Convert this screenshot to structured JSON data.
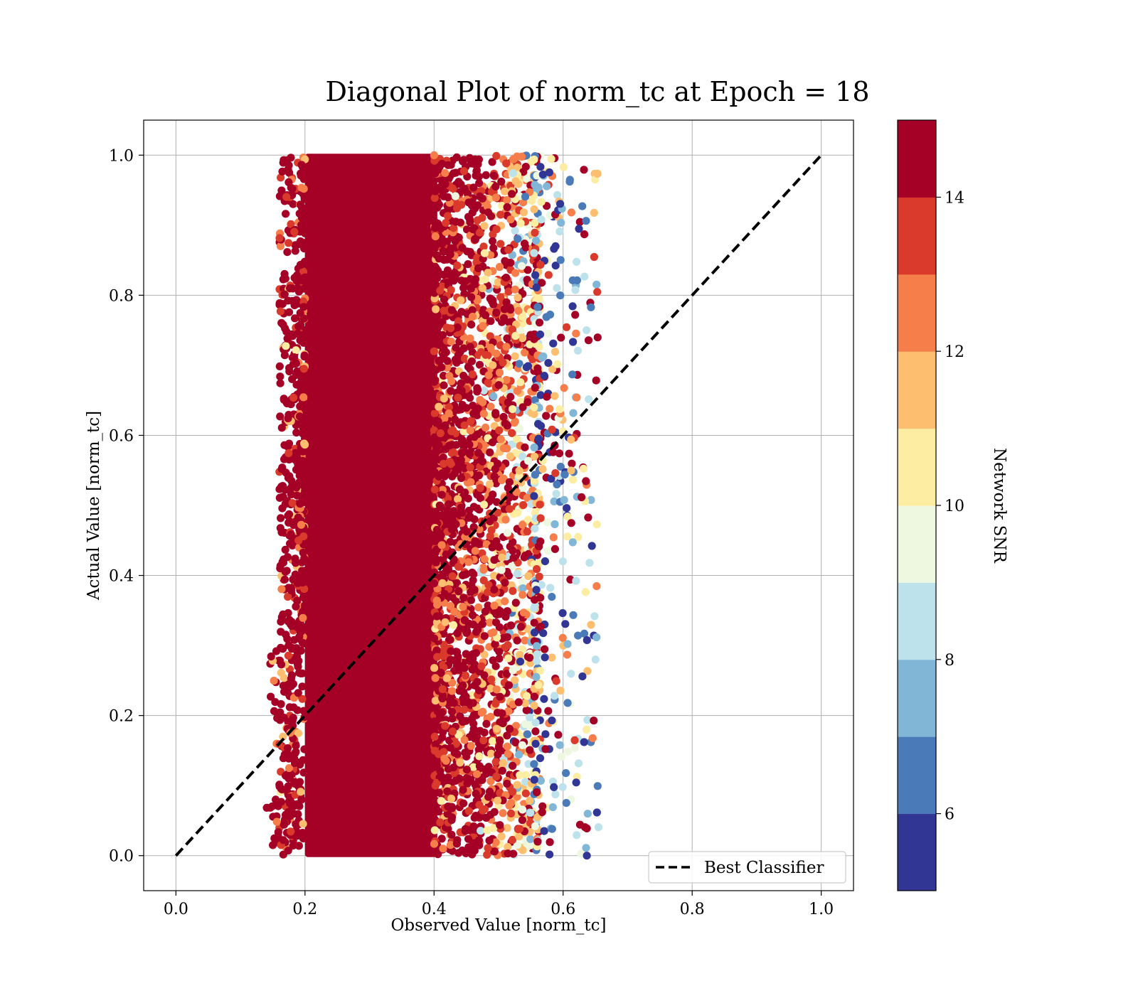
{
  "chart_data": {
    "type": "scatter",
    "title": "Diagonal Plot of norm_tc at Epoch = 18",
    "xlabel": "Observed Value [norm_tc]",
    "ylabel": "Actual Value [norm_tc]",
    "xlim": [
      -0.05,
      1.05
    ],
    "ylim": [
      -0.05,
      1.05
    ],
    "xticks": [
      "0.0",
      "0.2",
      "0.4",
      "0.6",
      "0.8",
      "1.0"
    ],
    "yticks": [
      "0.0",
      "0.2",
      "0.4",
      "0.6",
      "0.8",
      "1.0"
    ],
    "grid": true,
    "reference_line": {
      "label": "Best Classifier",
      "style": "dashed",
      "color": "#000000",
      "x": [
        0.0,
        1.0
      ],
      "y": [
        0.0,
        1.0
      ]
    },
    "legend": {
      "placement": "lower-right",
      "entries": [
        "Best Classifier"
      ]
    },
    "scatter_regions": [
      {
        "snr_band": "high",
        "observed_range": [
          0.2,
          0.4
        ],
        "actual_range": [
          0.0,
          1.0
        ],
        "density": "saturated"
      },
      {
        "snr_band": "mixed",
        "observed_range": [
          0.4,
          0.56
        ],
        "actual_range": [
          0.0,
          1.0
        ],
        "density": "dense"
      },
      {
        "snr_band": "mixed",
        "observed_range": [
          0.16,
          0.2
        ],
        "actual_range": [
          0.0,
          1.0
        ],
        "density": "sparse"
      },
      {
        "snr_band": "low",
        "observed_range": [
          0.56,
          0.66
        ],
        "actual_range": [
          0.0,
          1.0
        ],
        "density": "sparse"
      }
    ],
    "colorbar": {
      "label": "Network SNR",
      "range": [
        5,
        15
      ],
      "ticks": [
        "6",
        "8",
        "10",
        "12",
        "14"
      ],
      "tick_values": [
        6,
        8,
        10,
        12,
        14
      ],
      "bins": [
        {
          "from": 5,
          "to": 6,
          "color": "#313695"
        },
        {
          "from": 6,
          "to": 7,
          "color": "#4a7ab7"
        },
        {
          "from": 7,
          "to": 8,
          "color": "#81b6d6"
        },
        {
          "from": 8,
          "to": 9,
          "color": "#bde2ec"
        },
        {
          "from": 9,
          "to": 10,
          "color": "#eef7df"
        },
        {
          "from": 10,
          "to": 11,
          "color": "#fdeda2"
        },
        {
          "from": 11,
          "to": 12,
          "color": "#fdbe6f"
        },
        {
          "from": 12,
          "to": 13,
          "color": "#f57e4b"
        },
        {
          "from": 13,
          "to": 14,
          "color": "#d93a2b"
        },
        {
          "from": 14,
          "to": 15,
          "color": "#a50026"
        }
      ]
    }
  }
}
